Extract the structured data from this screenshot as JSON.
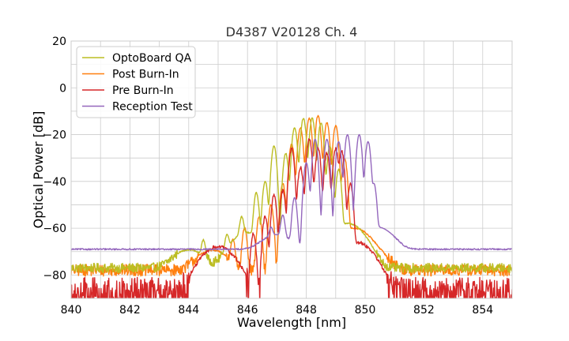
{
  "chart_data": {
    "type": "line",
    "title": "D4387 V20128 Ch. 4",
    "xlabel": "Wavelength [nm]",
    "ylabel": "Optical Power [dB]",
    "xlim": [
      840,
      855
    ],
    "ylim": [
      -90,
      20
    ],
    "xticks": [
      840,
      842,
      844,
      846,
      848,
      850,
      852,
      854
    ],
    "yticks": [
      20,
      0,
      -20,
      -40,
      -60,
      -80
    ],
    "xtick_labels": [
      "840",
      "842",
      "844",
      "846",
      "848",
      "850",
      "852",
      "854"
    ],
    "ytick_labels": [
      "20",
      "0",
      "−20",
      "−40",
      "−60",
      "−80"
    ],
    "grid": true,
    "legend_position": "top-left",
    "series": [
      {
        "name": "OptoBoard QA",
        "color": "#bcbd22",
        "floor": -77,
        "noise": 4,
        "peaks": [
          [
            844.5,
            -66
          ],
          [
            845.3,
            -64
          ],
          [
            845.8,
            -56
          ],
          [
            846.3,
            -45
          ],
          [
            846.6,
            -40
          ],
          [
            846.9,
            -25
          ],
          [
            847.3,
            -28
          ],
          [
            847.6,
            -17
          ],
          [
            847.9,
            -13
          ],
          [
            848.2,
            -13
          ],
          [
            848.5,
            -15
          ],
          [
            848.8,
            -25
          ],
          [
            849.1,
            -35
          ]
        ],
        "shoulders": [
          [
            844.0,
            -70
          ],
          [
            846.0,
            -62
          ],
          [
            849.4,
            -58
          ]
        ]
      },
      {
        "name": "Post Burn-In",
        "color": "#ff7f0e",
        "floor": -78,
        "noise": 5,
        "peaks": [
          [
            845.5,
            -65
          ],
          [
            845.9,
            -60
          ],
          [
            846.4,
            -55
          ],
          [
            846.8,
            -50
          ],
          [
            847.2,
            -41
          ],
          [
            847.5,
            -24
          ],
          [
            847.8,
            -17
          ],
          [
            848.1,
            -13
          ],
          [
            848.4,
            -12
          ],
          [
            848.7,
            -15
          ],
          [
            849.0,
            -16
          ],
          [
            849.3,
            -30
          ]
        ],
        "shoulders": [
          [
            844.8,
            -70
          ],
          [
            849.6,
            -60
          ],
          [
            850.3,
            -72
          ]
        ]
      },
      {
        "name": "Pre Burn-In",
        "color": "#d62728",
        "floor": -86,
        "noise": 10,
        "peaks": [
          [
            846.2,
            -62
          ],
          [
            846.6,
            -55
          ],
          [
            846.9,
            -46
          ],
          [
            847.2,
            -44
          ],
          [
            847.5,
            -26
          ],
          [
            847.8,
            -34
          ],
          [
            848.1,
            -22
          ],
          [
            848.4,
            -26
          ],
          [
            848.7,
            -28
          ],
          [
            849.0,
            -26
          ],
          [
            849.2,
            -27
          ],
          [
            849.5,
            -41
          ]
        ],
        "shoulders": [
          [
            845.0,
            -68
          ],
          [
            849.7,
            -66
          ]
        ]
      },
      {
        "name": "Reception Test",
        "color": "#9467bd",
        "floor": -69,
        "noise": 0.6,
        "peaks": [
          [
            846.8,
            -62
          ],
          [
            847.2,
            -55
          ],
          [
            847.6,
            -47
          ],
          [
            848.0,
            -32
          ],
          [
            848.3,
            -22
          ],
          [
            848.7,
            -22
          ],
          [
            849.1,
            -23
          ],
          [
            849.4,
            -20
          ],
          [
            849.8,
            -20
          ],
          [
            850.1,
            -23
          ],
          [
            850.3,
            -41
          ]
        ],
        "shoulders": [
          [
            847.0,
            -64
          ],
          [
            850.4,
            -60
          ]
        ]
      }
    ]
  }
}
